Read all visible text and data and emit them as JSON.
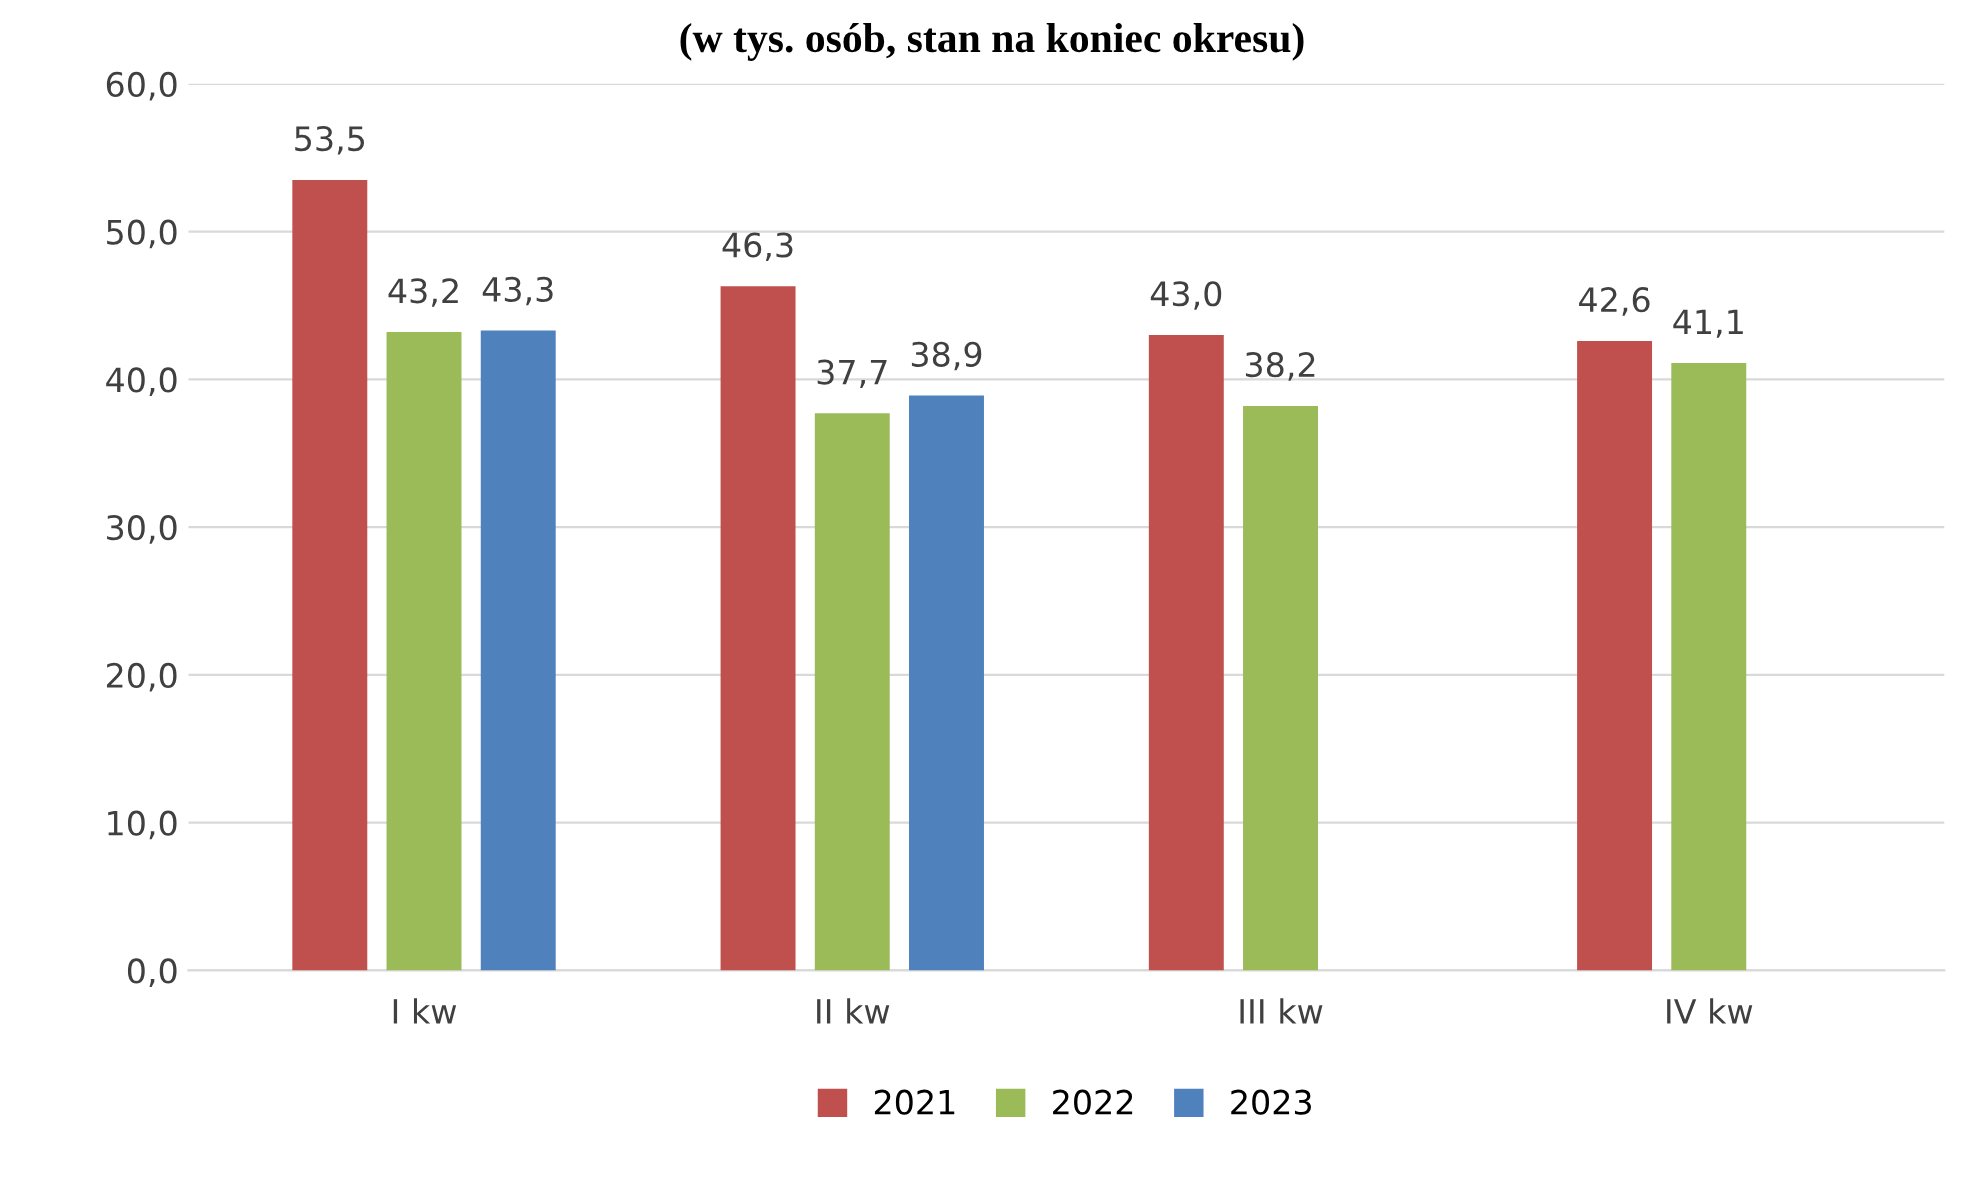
{
  "chart_data": {
    "type": "bar",
    "title": "(w tys. osób, stan na koniec okresu)",
    "categories": [
      "I kw",
      "II kw",
      "III kw",
      "IV kw"
    ],
    "series": [
      {
        "name": "2021",
        "color": "#c0504d",
        "values": [
          53.5,
          46.3,
          43.0,
          42.6
        ],
        "value_labels": [
          "53,5",
          "46,3",
          "43,0",
          "42,6"
        ]
      },
      {
        "name": "2022",
        "color": "#9bbb59",
        "values": [
          43.2,
          37.7,
          38.2,
          41.1
        ],
        "value_labels": [
          "43,2",
          "37,7",
          "38,2",
          "41,1"
        ]
      },
      {
        "name": "2023",
        "color": "#4f81bd",
        "values": [
          43.3,
          38.9,
          null,
          null
        ],
        "value_labels": [
          "43,3",
          "38,9",
          null,
          null
        ]
      }
    ],
    "ylim": [
      0,
      60
    ],
    "yticks": [
      {
        "value": 0,
        "label": "0,0"
      },
      {
        "value": 10,
        "label": "10,0"
      },
      {
        "value": 20,
        "label": "20,0"
      },
      {
        "value": 30,
        "label": "30,0"
      },
      {
        "value": 40,
        "label": "40,0"
      },
      {
        "value": 50,
        "label": "50,0"
      },
      {
        "value": 60,
        "label": "60,0"
      }
    ],
    "grid": "y",
    "legend": "bottom"
  }
}
